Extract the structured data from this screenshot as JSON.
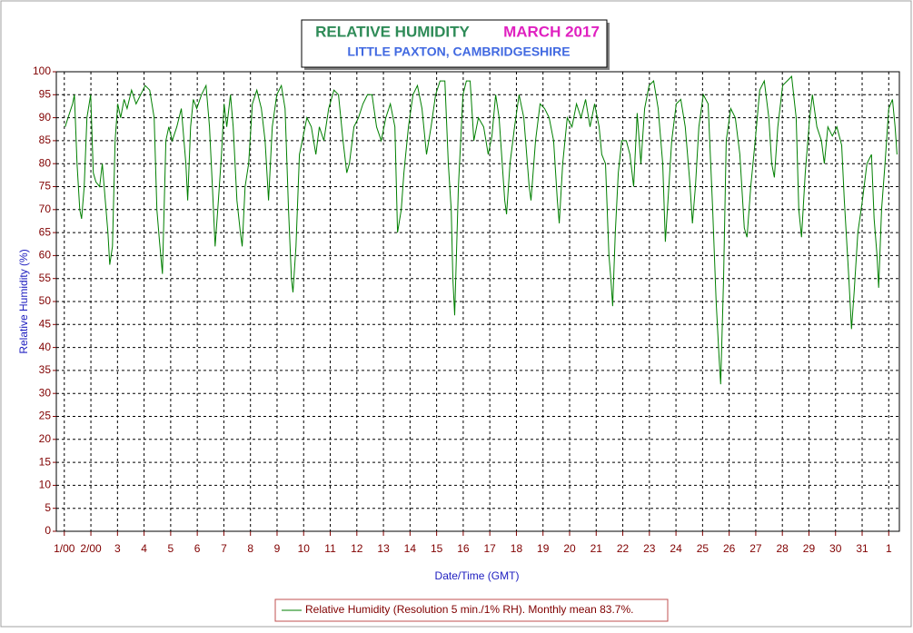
{
  "chart_data": {
    "type": "line",
    "title": "RELATIVE HUMIDITY",
    "period": "MARCH 2017",
    "subtitle": "LITTLE PAXTON, CAMBRIDGESHIRE",
    "x_label": "Date/Time (GMT)",
    "y_label": "Relative Humidity (%)",
    "grid": true,
    "legend": "bottom",
    "xlim": [
      -0.3,
      31.4
    ],
    "ylim": [
      0,
      100
    ],
    "xticks": [
      {
        "value": 0,
        "label": "1/00"
      },
      {
        "value": 1,
        "label": "2/00"
      },
      {
        "value": 2,
        "label": "3"
      },
      {
        "value": 3,
        "label": "4"
      },
      {
        "value": 4,
        "label": "5"
      },
      {
        "value": 5,
        "label": "6"
      },
      {
        "value": 6,
        "label": "7"
      },
      {
        "value": 7,
        "label": "8"
      },
      {
        "value": 8,
        "label": "9"
      },
      {
        "value": 9,
        "label": "10"
      },
      {
        "value": 10,
        "label": "11"
      },
      {
        "value": 11,
        "label": "12"
      },
      {
        "value": 12,
        "label": "13"
      },
      {
        "value": 13,
        "label": "14"
      },
      {
        "value": 14,
        "label": "15"
      },
      {
        "value": 15,
        "label": "16"
      },
      {
        "value": 16,
        "label": "17"
      },
      {
        "value": 17,
        "label": "18"
      },
      {
        "value": 18,
        "label": "19"
      },
      {
        "value": 19,
        "label": "20"
      },
      {
        "value": 20,
        "label": "21"
      },
      {
        "value": 21,
        "label": "22"
      },
      {
        "value": 22,
        "label": "23"
      },
      {
        "value": 23,
        "label": "24"
      },
      {
        "value": 24,
        "label": "25"
      },
      {
        "value": 25,
        "label": "26"
      },
      {
        "value": 26,
        "label": "27"
      },
      {
        "value": 27,
        "label": "28"
      },
      {
        "value": 28,
        "label": "29"
      },
      {
        "value": 29,
        "label": "30"
      },
      {
        "value": 30,
        "label": "31"
      },
      {
        "value": 31,
        "label": "1"
      }
    ],
    "yticks": [
      0,
      5,
      10,
      15,
      20,
      25,
      30,
      35,
      40,
      45,
      50,
      55,
      60,
      65,
      70,
      75,
      80,
      85,
      90,
      95,
      100
    ],
    "x": [
      0.03,
      0.14,
      0.31,
      0.38,
      0.48,
      0.58,
      0.65,
      0.75,
      0.85,
      0.99,
      1.09,
      1.19,
      1.33,
      1.43,
      1.54,
      1.64,
      1.71,
      1.81,
      1.91,
      2.01,
      2.12,
      2.25,
      2.36,
      2.53,
      2.7,
      2.87,
      3.04,
      3.21,
      3.38,
      3.48,
      3.58,
      3.69,
      3.82,
      3.93,
      4.06,
      4.23,
      4.4,
      4.57,
      4.64,
      4.75,
      4.85,
      4.98,
      5.16,
      5.33,
      5.46,
      5.57,
      5.67,
      5.77,
      5.91,
      6.01,
      6.11,
      6.25,
      6.35,
      6.49,
      6.62,
      6.69,
      6.8,
      6.93,
      7.07,
      7.24,
      7.41,
      7.55,
      7.68,
      7.82,
      7.99,
      8.16,
      8.3,
      8.43,
      8.54,
      8.6,
      8.71,
      8.84,
      8.95,
      9.12,
      9.29,
      9.46,
      9.59,
      9.76,
      9.94,
      10.14,
      10.31,
      10.48,
      10.62,
      10.72,
      10.89,
      11.06,
      11.23,
      11.4,
      11.57,
      11.74,
      11.92,
      12.09,
      12.26,
      12.43,
      12.53,
      12.67,
      12.77,
      12.94,
      13.11,
      13.28,
      13.45,
      13.62,
      13.79,
      13.96,
      14.13,
      14.31,
      14.44,
      14.55,
      14.61,
      14.68,
      14.82,
      14.99,
      15.12,
      15.26,
      15.4,
      15.57,
      15.77,
      15.94,
      16.08,
      16.22,
      16.35,
      16.56,
      16.63,
      16.76,
      16.93,
      17.1,
      17.28,
      17.48,
      17.55,
      17.72,
      17.89,
      18.06,
      18.23,
      18.4,
      18.54,
      18.61,
      18.74,
      18.91,
      19.09,
      19.26,
      19.43,
      19.6,
      19.77,
      19.94,
      20.11,
      20.21,
      20.35,
      20.48,
      20.55,
      20.62,
      20.72,
      20.83,
      20.96,
      21.13,
      21.27,
      21.41,
      21.54,
      21.68,
      21.82,
      21.99,
      22.16,
      22.33,
      22.5,
      22.6,
      22.7,
      22.84,
      23.01,
      23.18,
      23.35,
      23.52,
      23.62,
      23.73,
      23.86,
      24.03,
      24.21,
      24.38,
      24.51,
      24.62,
      24.68,
      24.79,
      24.89,
      25.06,
      25.23,
      25.4,
      25.57,
      25.67,
      25.81,
      25.98,
      26.15,
      26.32,
      26.49,
      26.6,
      26.7,
      26.83,
      27.01,
      27.18,
      27.35,
      27.52,
      27.62,
      27.72,
      27.86,
      28.03,
      28.13,
      28.3,
      28.47,
      28.58,
      28.71,
      28.88,
      29.05,
      29.23,
      29.33,
      29.5,
      29.6,
      29.7,
      29.84,
      30.01,
      30.18,
      30.35,
      30.45,
      30.56,
      30.62,
      30.73,
      30.86,
      31.0,
      31.14,
      31.24,
      31.31
    ],
    "series": [
      {
        "name": "Relative Humidity (Resolution 5 min./1% RH). Monthly mean 83.7%.",
        "color": "#007f00",
        "values": [
          88,
          90,
          93,
          95,
          80,
          70,
          68,
          75,
          90,
          95,
          78,
          76,
          75,
          80,
          72,
          65,
          58,
          62,
          85,
          93,
          90,
          94,
          92,
          96,
          93,
          95,
          97,
          96,
          90,
          70,
          63,
          56,
          85,
          88,
          85,
          88,
          92,
          80,
          72,
          88,
          94,
          92,
          95,
          97,
          88,
          75,
          62,
          70,
          82,
          93,
          88,
          95,
          88,
          72,
          65,
          62,
          75,
          80,
          93,
          96,
          92,
          85,
          72,
          88,
          95,
          97,
          92,
          70,
          55,
          52,
          62,
          82,
          85,
          90,
          88,
          82,
          88,
          85,
          92,
          96,
          95,
          85,
          78,
          80,
          88,
          90,
          93,
          95,
          95,
          88,
          85,
          90,
          93,
          88,
          65,
          70,
          78,
          88,
          95,
          97,
          92,
          82,
          88,
          95,
          98,
          98,
          80,
          70,
          55,
          47,
          75,
          95,
          98,
          98,
          85,
          90,
          88,
          82,
          86,
          95,
          90,
          72,
          69,
          80,
          88,
          95,
          90,
          75,
          72,
          85,
          93,
          92,
          90,
          85,
          72,
          67,
          80,
          90,
          88,
          93,
          90,
          94,
          88,
          93,
          88,
          82,
          80,
          60,
          55,
          49,
          65,
          78,
          85,
          85,
          82,
          75,
          91,
          80,
          92,
          97,
          98,
          92,
          80,
          63,
          72,
          85,
          93,
          94,
          88,
          76,
          67,
          75,
          88,
          95,
          93,
          70,
          50,
          38,
          32,
          55,
          85,
          92,
          90,
          82,
          66,
          64,
          75,
          85,
          96,
          98,
          90,
          80,
          77,
          88,
          97,
          98,
          99,
          90,
          70,
          64,
          78,
          90,
          95,
          88,
          85,
          80,
          88,
          86,
          88,
          84,
          72,
          55,
          44,
          52,
          65,
          72,
          80,
          82,
          68,
          60,
          53,
          70,
          80,
          92,
          94,
          88,
          82
        ]
      }
    ]
  }
}
